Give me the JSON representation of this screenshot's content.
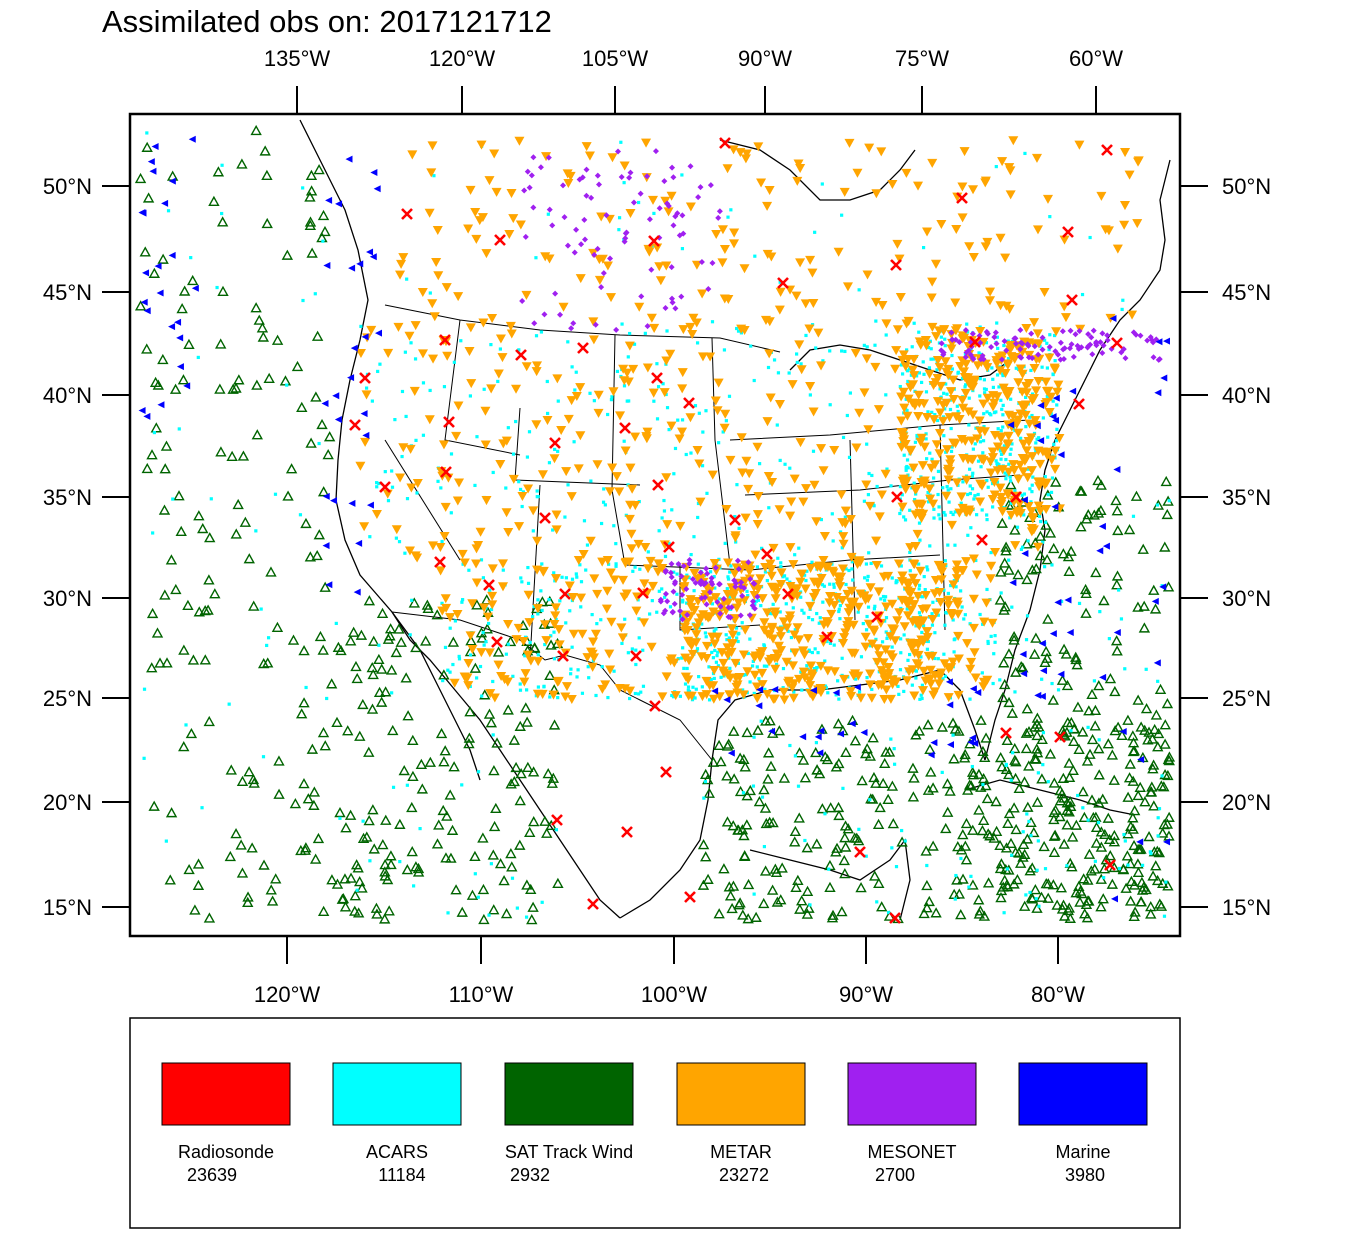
{
  "title": "Assimilated obs on: 2017121712",
  "axes": {
    "top_lon_labels": [
      "135°W",
      "120°W",
      "105°W",
      "90°W",
      "75°W",
      "60°W"
    ],
    "bottom_lon_labels": [
      "120°W",
      "110°W",
      "100°W",
      "90°W",
      "80°W"
    ],
    "left_lat_labels": [
      "50°N",
      "45°N",
      "40°N",
      "35°N",
      "30°N",
      "25°N",
      "20°N",
      "15°N"
    ],
    "right_lat_labels": [
      "50°N",
      "45°N",
      "40°N",
      "35°N",
      "30°N",
      "25°N",
      "20°N",
      "15°N"
    ]
  },
  "legend": [
    {
      "label": "Radiosonde",
      "count": "23639",
      "color": "#ff0000"
    },
    {
      "label": "ACARS",
      "count": "11184",
      "color": "#00ffff"
    },
    {
      "label": "SAT Track Wind",
      "count": "2932",
      "color": "#006400"
    },
    {
      "label": "METAR",
      "count": "23272",
      "color": "#ffa500"
    },
    {
      "label": "MESONET",
      "count": "2700",
      "color": "#a020f0"
    },
    {
      "label": "Marine",
      "count": "3980",
      "color": "#0000ff"
    }
  ],
  "colors": {
    "radiosonde": "#ff0000",
    "acars": "#00ffff",
    "sat_track_wind": "#006400",
    "metar": "#ffa500",
    "mesonet": "#a020f0",
    "marine": "#0000ff",
    "radiosonde_marker": "#ff6a00"
  },
  "icons": {
    "radiosonde": "x-marker-icon",
    "acars": "dot-marker-icon",
    "sat_track_wind": "open-triangle-marker-icon",
    "metar": "down-triangle-marker-icon",
    "mesonet": "diamond-marker-icon",
    "marine": "left-triangle-marker-icon"
  }
}
